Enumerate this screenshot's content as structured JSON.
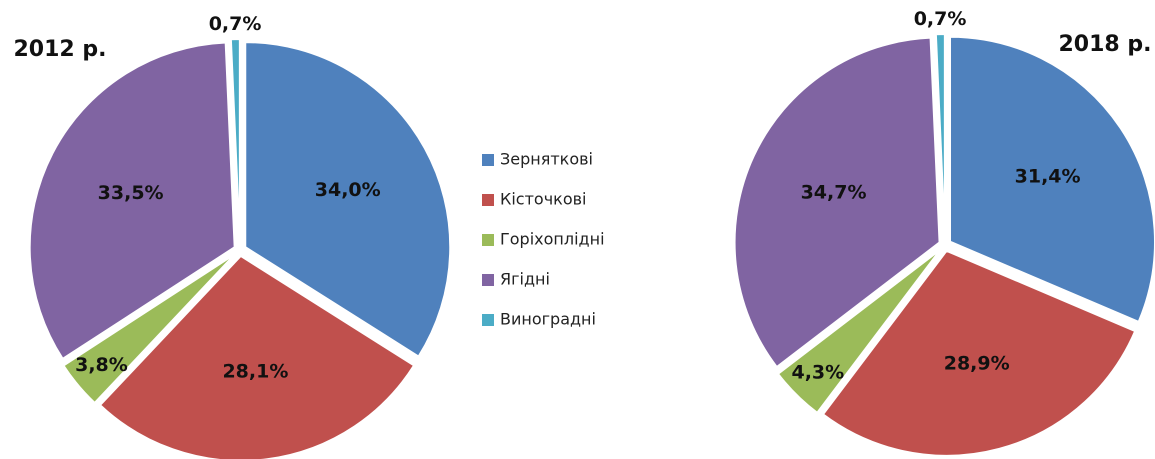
{
  "chart_data": {
    "type": "pie",
    "categories": [
      "Зерняткові",
      "Кісточкові",
      "Горіхоплідні",
      "Ягідні",
      "Виноградні"
    ],
    "colors": [
      "#4f81bd",
      "#c0504d",
      "#9bbb59",
      "#8064a2",
      "#4bacc6"
    ],
    "series": [
      {
        "name": "2012 р.",
        "values": [
          34.0,
          28.1,
          3.8,
          33.5,
          0.7
        ],
        "value_labels": [
          "34,0%",
          "28,1%",
          "3,8%",
          "33,5%",
          "0,7%"
        ]
      },
      {
        "name": "2018 р.",
        "values": [
          31.4,
          28.9,
          4.3,
          34.7,
          0.7
        ],
        "value_labels": [
          "31,4%",
          "28,9%",
          "4,3%",
          "34,7%",
          "0,7%"
        ]
      }
    ]
  }
}
